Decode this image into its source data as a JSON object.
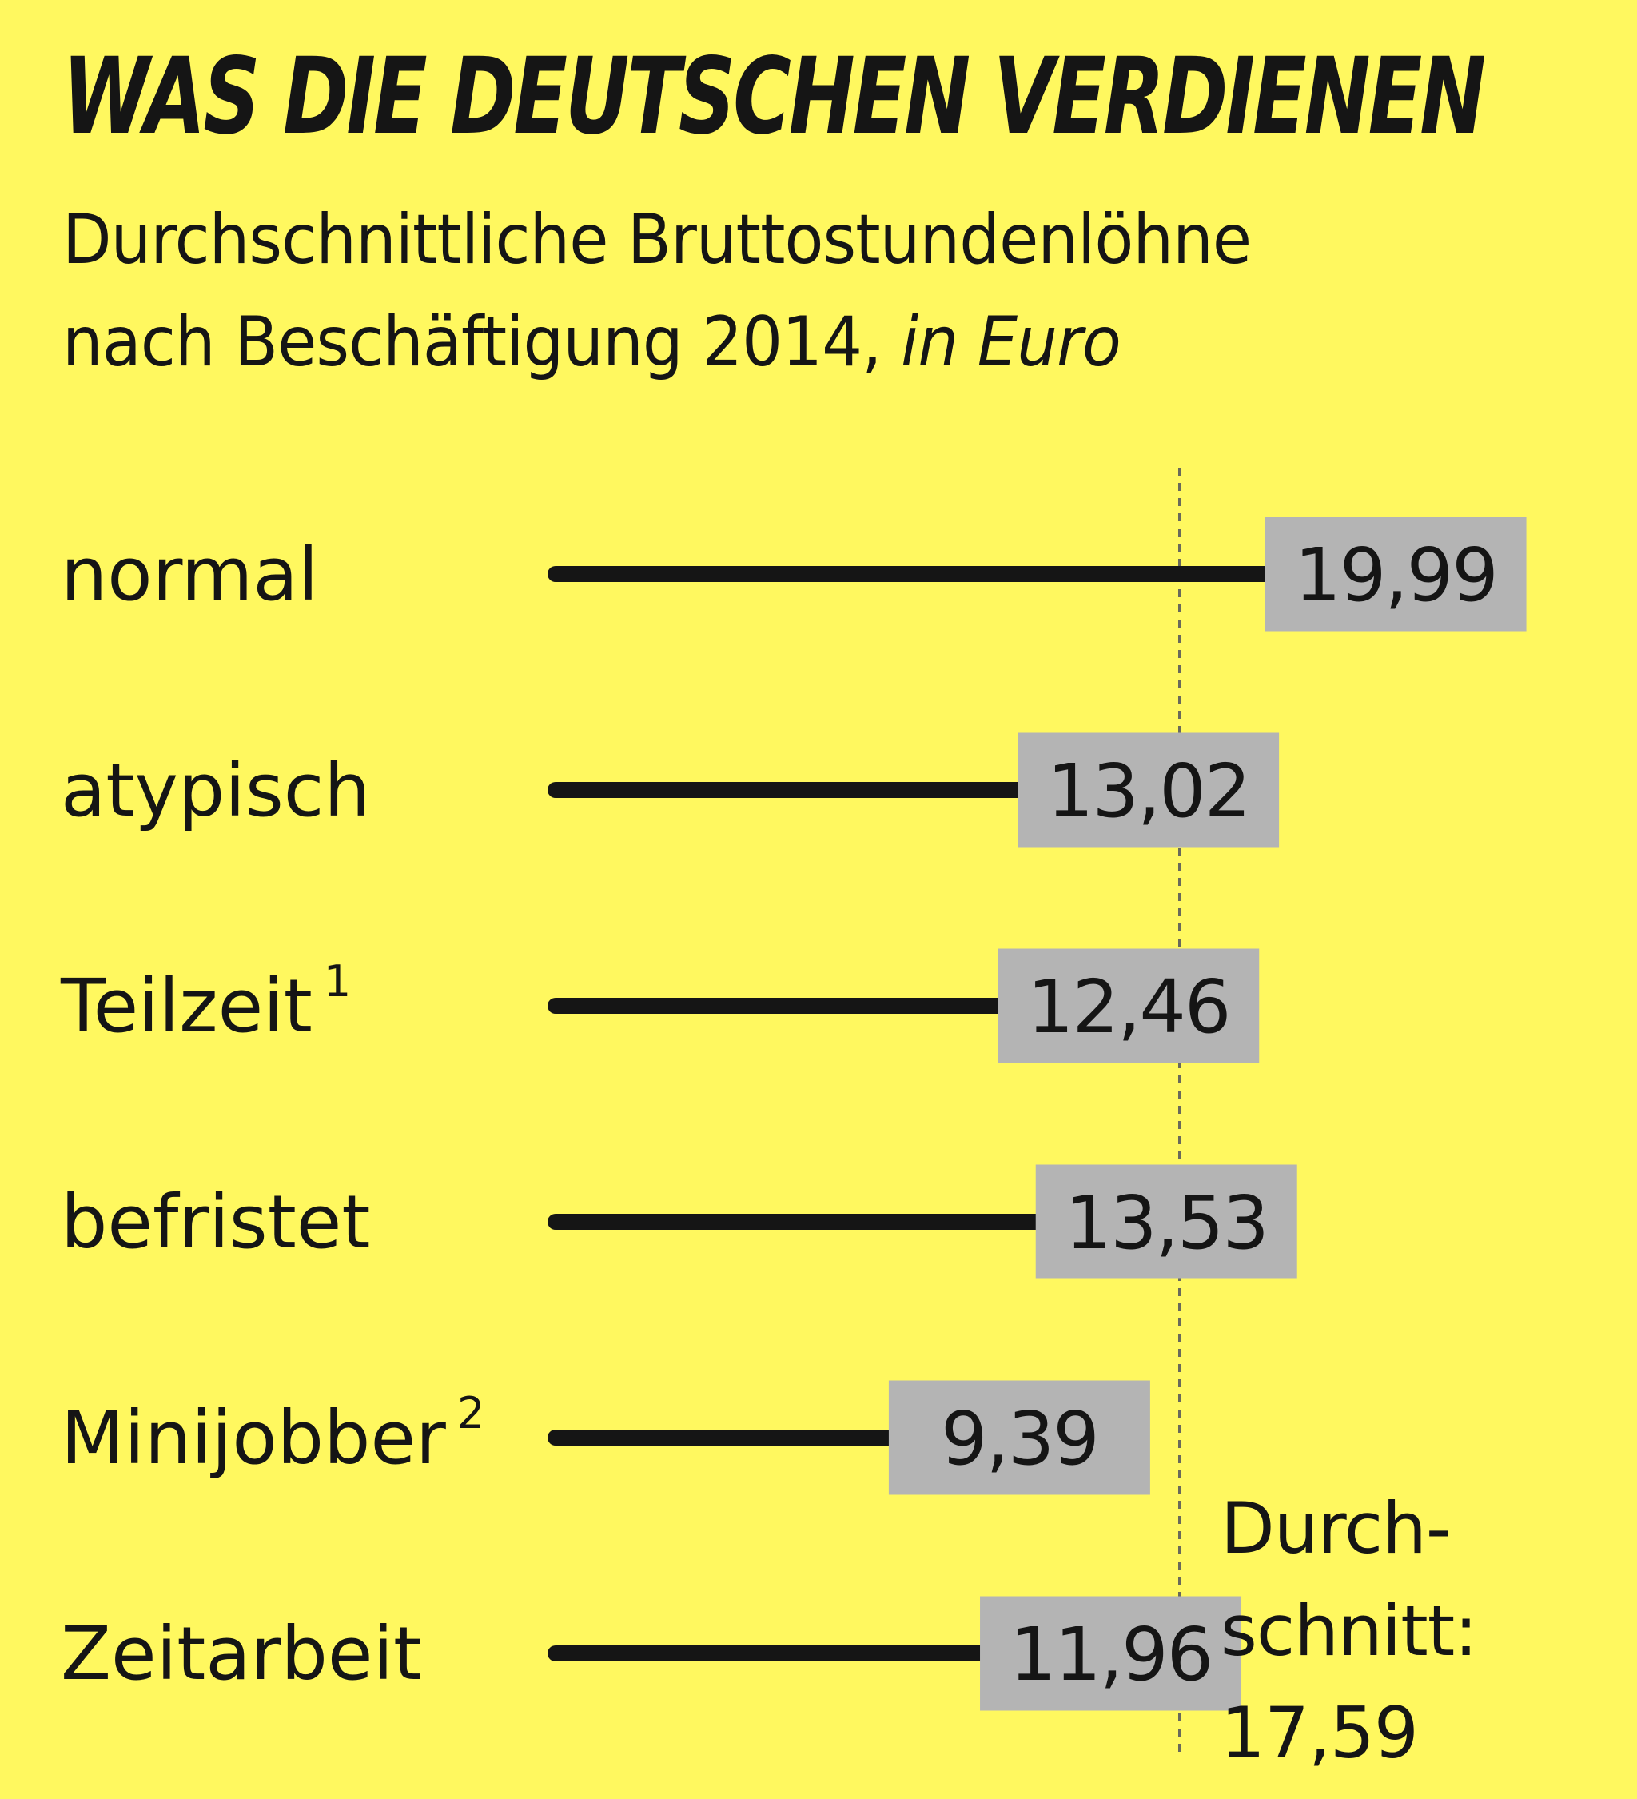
{
  "chart_data": {
    "type": "bar",
    "title": "WAS DIE DEUTSCHEN VERDIENEN",
    "subtitle_line1": "Durchschnittliche Bruttostundenlöhne",
    "subtitle_line2": "nach Beschäftigung 2014,",
    "unit": "in Euro",
    "categories": [
      "normal",
      "atypisch",
      "Teilzeit",
      "befristet",
      "Minijobber",
      "Zeitarbeit"
    ],
    "footnote_marks": [
      "",
      "",
      "1",
      "",
      "2",
      ""
    ],
    "values": [
      19.99,
      13.02,
      12.46,
      13.53,
      9.39,
      11.96
    ],
    "value_labels": [
      "19,99",
      "13,02",
      "12,46",
      "13,53",
      "9,39",
      "11,96"
    ],
    "reference_line": {
      "value": 17.59,
      "label_lines": [
        "Durch-",
        "schnitt:",
        "17,59"
      ]
    },
    "colors": {
      "background": "#fff85f",
      "bar": "#151515",
      "label_box": "#b4b4b4",
      "text": "#151515"
    }
  }
}
